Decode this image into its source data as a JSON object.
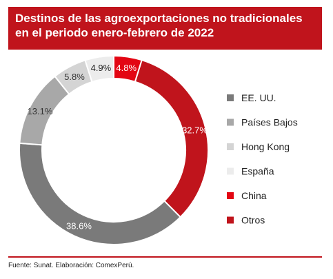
{
  "title": {
    "line1": "Destinos de las agroexportaciones no tradicionales",
    "line2": "en el periodo enero-febrero de 2022"
  },
  "source": "Fuente: Sunat. Elaboración: ComexPerú.",
  "colors": {
    "title_bar": "#c0141c",
    "footer_rule": "#c0141c"
  },
  "chart_data": {
    "type": "pie",
    "variant": "donut",
    "title": "Destinos de las agroexportaciones no tradicionales en el periodo enero-febrero de 2022",
    "legend_position": "right",
    "slices": [
      {
        "label": "China",
        "value": 4.8,
        "value_label": "4.8%",
        "color": "#e30613",
        "label_color": "#ffffff"
      },
      {
        "label": "Otros",
        "value": 32.7,
        "value_label": "32.7%",
        "color": "#c0141c",
        "label_color": "#ffffff"
      },
      {
        "label": "EE. UU.",
        "value": 38.6,
        "value_label": "38.6%",
        "color": "#7a7a7a",
        "label_color": "#ffffff"
      },
      {
        "label": "Países Bajos",
        "value": 13.1,
        "value_label": "13.1%",
        "color": "#a8a8a8",
        "label_color": "#333333"
      },
      {
        "label": "Hong Kong",
        "value": 5.8,
        "value_label": "5.8%",
        "color": "#d4d4d4",
        "label_color": "#333333"
      },
      {
        "label": "España",
        "value": 4.9,
        "value_label": "4.9%",
        "color": "#ececec",
        "label_color": "#222222"
      }
    ],
    "legend": [
      "EE. UU.",
      "Países Bajos",
      "Hong Kong",
      "España",
      "China",
      "Otros"
    ]
  }
}
